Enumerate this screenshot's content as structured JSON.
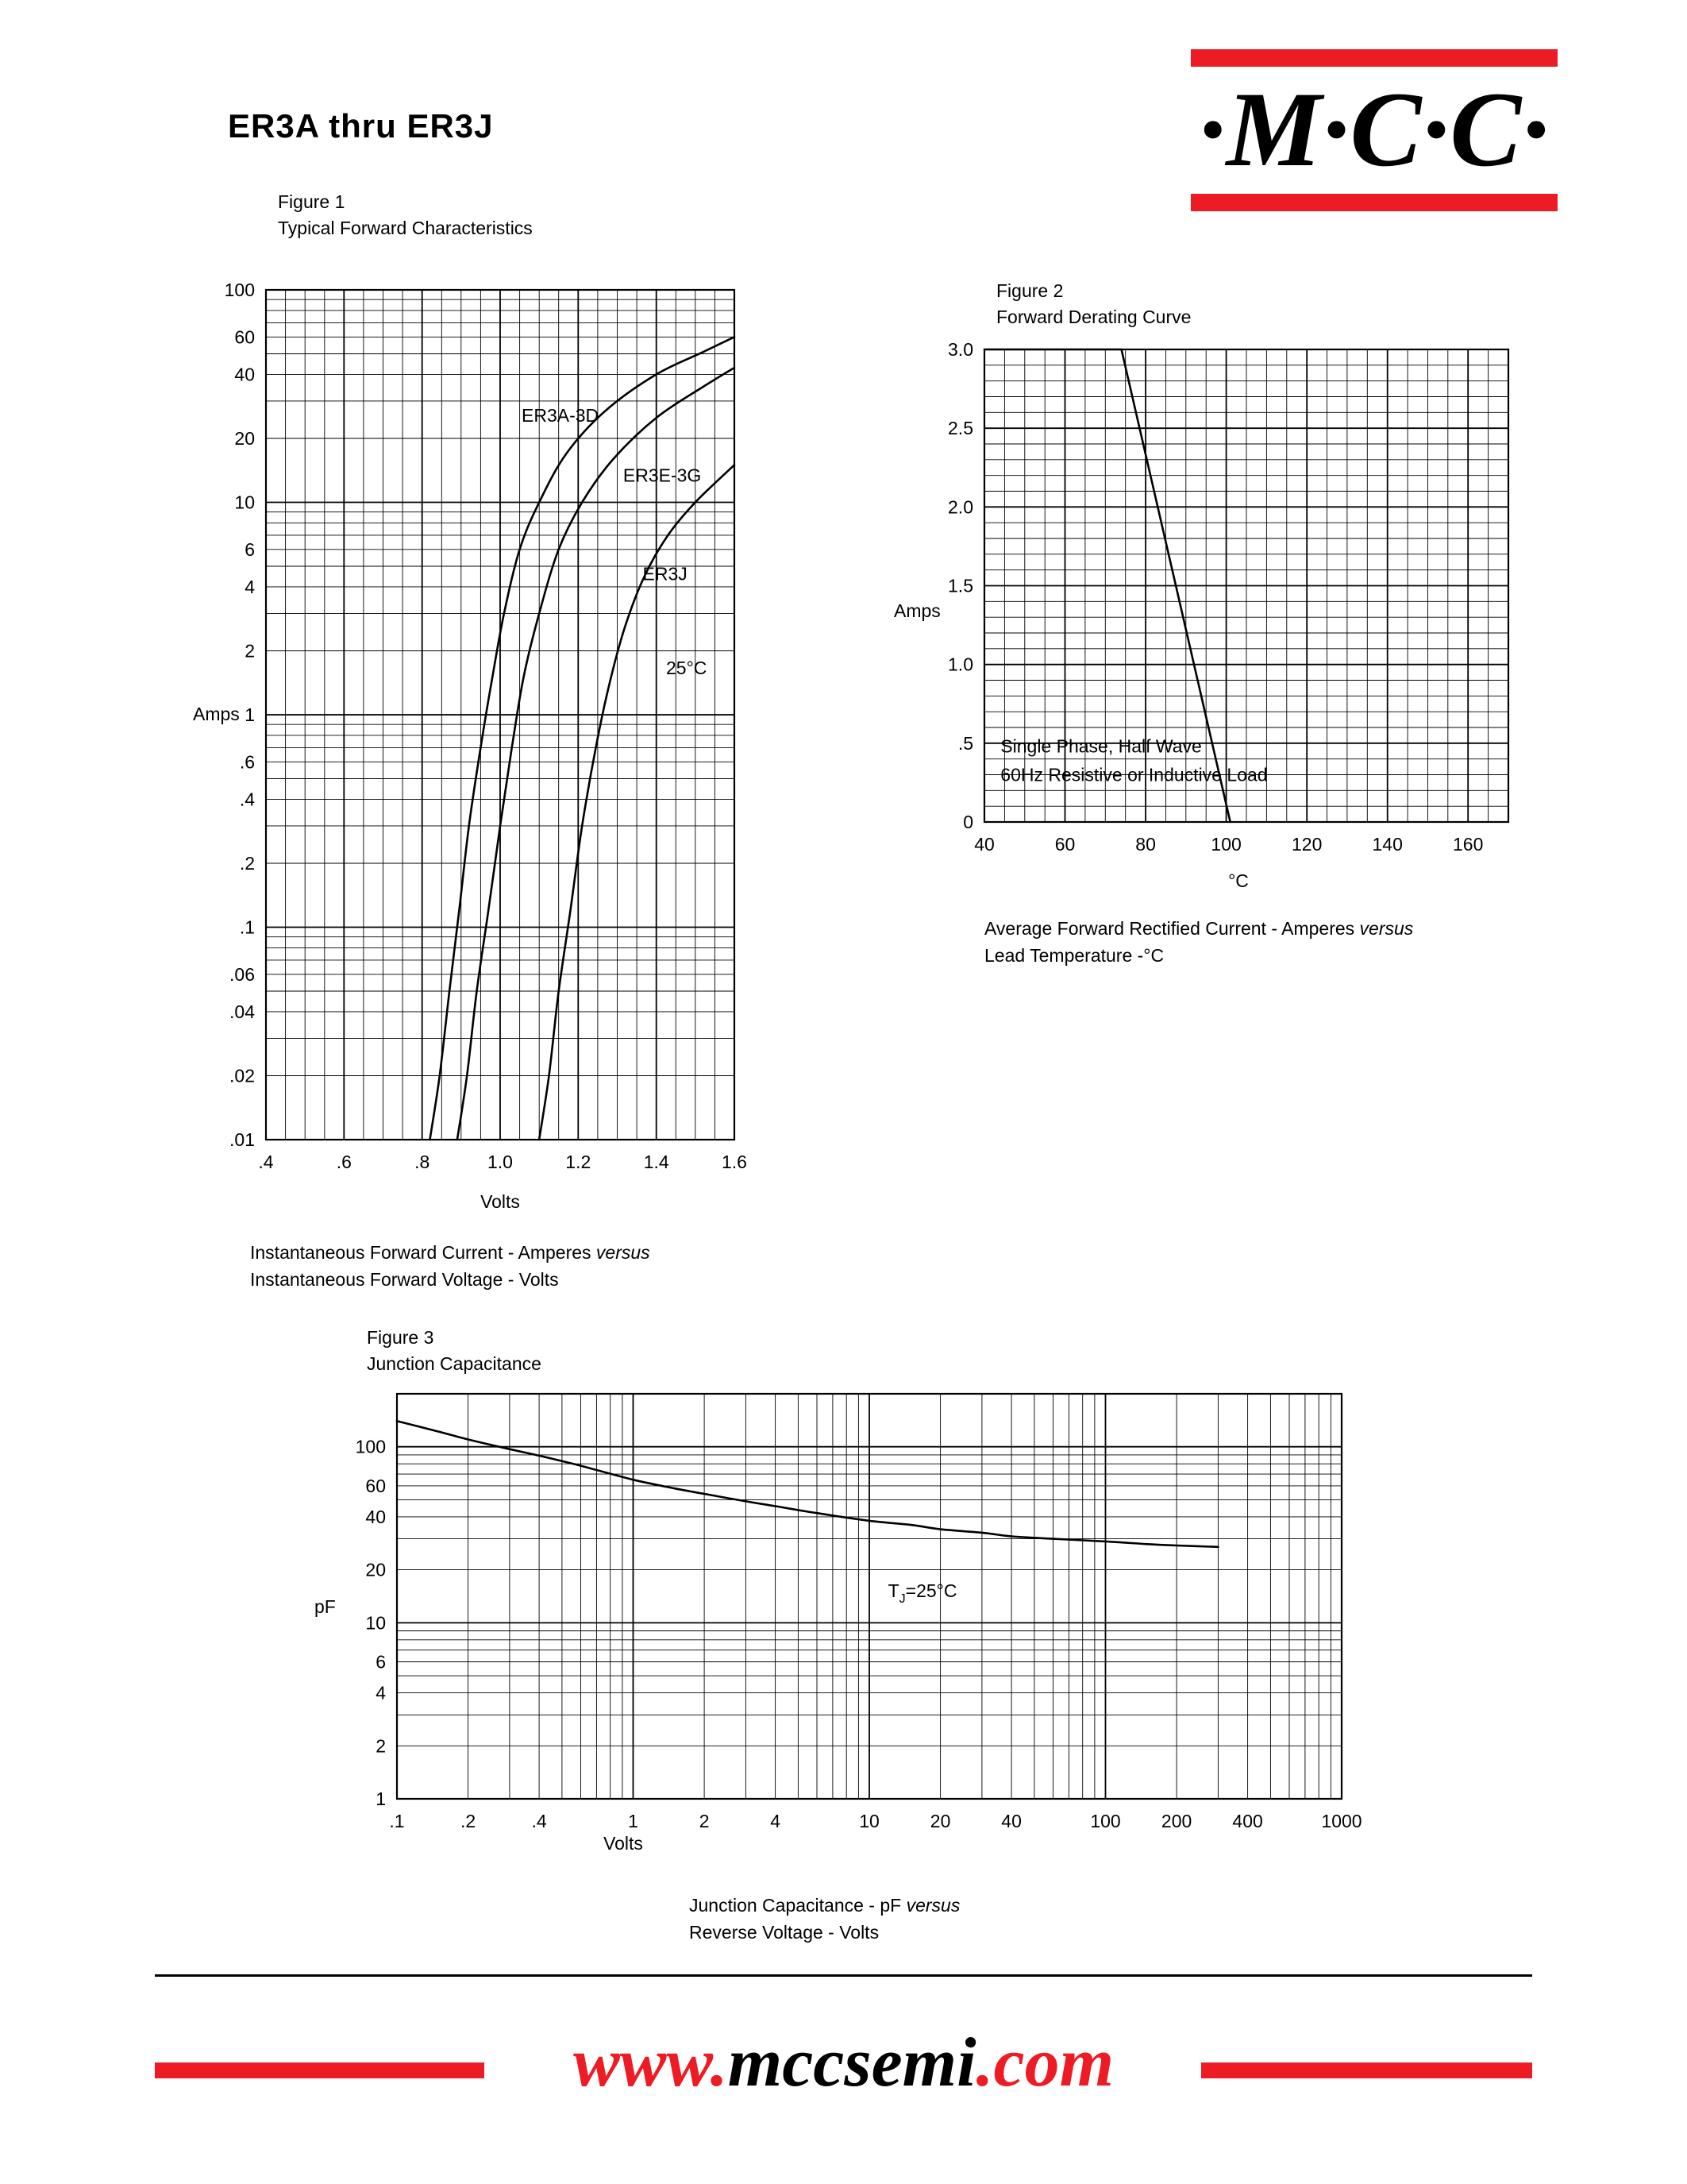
{
  "page": {
    "title": "ER3A thru ER3J",
    "logo_text": "·M·C·C·",
    "brand_red": "#ed1c24",
    "footer": {
      "www": "www.",
      "domain": "mccsemi",
      "com": ".com"
    }
  },
  "chart_data": [
    {
      "id": "fig1",
      "type": "line",
      "figure_label": "Figure 1",
      "figure_title": "Typical Forward Characteristics",
      "xlabel": "Volts",
      "ylabel": "Amps",
      "x_scale": "linear",
      "x_min": 0.4,
      "x_max": 1.6,
      "x_minor_step": 0.05,
      "y_scale": "log",
      "y_min": 0.01,
      "y_max": 100,
      "grid": true,
      "x_ticks": [
        {
          "v": 0.4,
          "l": ".4"
        },
        {
          "v": 0.6,
          "l": ".6"
        },
        {
          "v": 0.8,
          "l": ".8"
        },
        {
          "v": 1.0,
          "l": "1.0"
        },
        {
          "v": 1.2,
          "l": "1.2"
        },
        {
          "v": 1.4,
          "l": "1.4"
        },
        {
          "v": 1.6,
          "l": "1.6"
        }
      ],
      "y_ticks": [
        {
          "v": 100,
          "l": "100"
        },
        {
          "v": 60,
          "l": "60"
        },
        {
          "v": 40,
          "l": "40"
        },
        {
          "v": 20,
          "l": "20"
        },
        {
          "v": 10,
          "l": "10"
        },
        {
          "v": 6,
          "l": "6"
        },
        {
          "v": 4,
          "l": "4"
        },
        {
          "v": 2,
          "l": "2"
        },
        {
          "v": 1,
          "l": "1"
        },
        {
          "v": 0.6,
          "l": ".6"
        },
        {
          "v": 0.4,
          "l": ".4"
        },
        {
          "v": 0.2,
          "l": ".2"
        },
        {
          "v": 0.1,
          "l": ".1"
        },
        {
          "v": 0.06,
          "l": ".06"
        },
        {
          "v": 0.04,
          "l": ".04"
        },
        {
          "v": 0.02,
          "l": ".02"
        },
        {
          "v": 0.01,
          "l": ".01"
        }
      ],
      "series": [
        {
          "name": "ER3A-3D",
          "points": [
            [
              0.82,
              0.01
            ],
            [
              0.845,
              0.02
            ],
            [
              0.87,
              0.05
            ],
            [
              0.895,
              0.12
            ],
            [
              0.92,
              0.3
            ],
            [
              0.95,
              0.7
            ],
            [
              0.98,
              1.5
            ],
            [
              1.01,
              3
            ],
            [
              1.05,
              6
            ],
            [
              1.1,
              10
            ],
            [
              1.17,
              17
            ],
            [
              1.27,
              27
            ],
            [
              1.4,
              40
            ],
            [
              1.52,
              51
            ],
            [
              1.6,
              60
            ]
          ]
        },
        {
          "name": "ER3E-3G",
          "points": [
            [
              0.89,
              0.01
            ],
            [
              0.915,
              0.02
            ],
            [
              0.94,
              0.05
            ],
            [
              0.97,
              0.12
            ],
            [
              1.0,
              0.3
            ],
            [
              1.03,
              0.7
            ],
            [
              1.06,
              1.5
            ],
            [
              1.1,
              3
            ],
            [
              1.15,
              6
            ],
            [
              1.21,
              10
            ],
            [
              1.29,
              16
            ],
            [
              1.4,
              25
            ],
            [
              1.52,
              35
            ],
            [
              1.6,
              43
            ]
          ]
        },
        {
          "name": "ER3J",
          "points": [
            [
              1.1,
              0.01
            ],
            [
              1.125,
              0.02
            ],
            [
              1.15,
              0.05
            ],
            [
              1.18,
              0.12
            ],
            [
              1.21,
              0.3
            ],
            [
              1.245,
              0.7
            ],
            [
              1.28,
              1.4
            ],
            [
              1.32,
              2.6
            ],
            [
              1.37,
              4.5
            ],
            [
              1.43,
              7
            ],
            [
              1.5,
              10
            ],
            [
              1.6,
              15
            ]
          ]
        }
      ],
      "annotations": [
        {
          "x": 1.055,
          "y": 24,
          "text": "ER3A-3D"
        },
        {
          "x": 1.315,
          "y": 12.5,
          "text": "ER3E-3G"
        },
        {
          "x": 1.365,
          "y": 4.3,
          "text": "ER3J"
        },
        {
          "x": 1.425,
          "y": 1.55,
          "text": "25°C"
        }
      ],
      "caption": [
        [
          {
            "t": "Instantaneous Forward Current - Amperes "
          },
          {
            "t": "versus",
            "i": true
          }
        ],
        [
          {
            "t": "Instantaneous Forward Voltage - Volts"
          }
        ]
      ]
    },
    {
      "id": "fig2",
      "type": "line",
      "figure_label": "Figure 2",
      "figure_title": "Forward Derating Curve",
      "xlabel": "°C",
      "ylabel": "Amps",
      "x_scale": "linear",
      "x_min": 40,
      "x_max": 170,
      "x_minor_step": 5,
      "y_scale": "linear",
      "y_min": 0,
      "y_max": 3.0,
      "y_minor_step": 0.1,
      "grid": true,
      "x_ticks": [
        {
          "v": 40,
          "l": "40"
        },
        {
          "v": 60,
          "l": "60"
        },
        {
          "v": 80,
          "l": "80"
        },
        {
          "v": 100,
          "l": "100"
        },
        {
          "v": 120,
          "l": "120"
        },
        {
          "v": 140,
          "l": "140"
        },
        {
          "v": 160,
          "l": "160"
        }
      ],
      "y_ticks": [
        {
          "v": 3.0,
          "l": "3.0"
        },
        {
          "v": 2.5,
          "l": "2.5"
        },
        {
          "v": 2.0,
          "l": "2.0"
        },
        {
          "v": 1.5,
          "l": "1.5"
        },
        {
          "v": 1.0,
          "l": "1.0"
        },
        {
          "v": 0.5,
          "l": ".5"
        },
        {
          "v": 0,
          "l": "0"
        }
      ],
      "series": [
        {
          "name": "derating",
          "smooth": false,
          "points": [
            [
              40,
              3
            ],
            [
              74,
              3
            ],
            [
              101,
              0
            ]
          ]
        }
      ],
      "annotations": [
        {
          "x": 44,
          "y": 0.44,
          "text": "Single Phase, Half Wave"
        },
        {
          "x": 44,
          "y": 0.26,
          "text": "60Hz Resistive or Inductive Load"
        }
      ],
      "caption": [
        [
          {
            "t": "Average Forward Rectified Current  -  Amperes "
          },
          {
            "t": "versus",
            "i": true
          }
        ],
        [
          {
            "t": "Lead Temperature  -°C"
          }
        ]
      ]
    },
    {
      "id": "fig3",
      "type": "line",
      "figure_label": "Figure 3",
      "figure_title": "Junction Capacitance",
      "xlabel": "Volts",
      "ylabel": "pF",
      "x_scale": "log",
      "x_min": 0.1,
      "x_max": 1000,
      "y_scale": "log",
      "y_min": 1,
      "y_max": 200,
      "grid": true,
      "x_ticks": [
        {
          "v": 0.1,
          "l": ".1"
        },
        {
          "v": 0.2,
          "l": ".2"
        },
        {
          "v": 0.4,
          "l": ".4"
        },
        {
          "v": 1,
          "l": "1"
        },
        {
          "v": 2,
          "l": "2"
        },
        {
          "v": 4,
          "l": "4"
        },
        {
          "v": 10,
          "l": "10"
        },
        {
          "v": 20,
          "l": "20"
        },
        {
          "v": 40,
          "l": "40"
        },
        {
          "v": 100,
          "l": "100"
        },
        {
          "v": 200,
          "l": "200"
        },
        {
          "v": 400,
          "l": "400"
        },
        {
          "v": 1000,
          "l": "1000"
        }
      ],
      "y_ticks": [
        {
          "v": 100,
          "l": "100"
        },
        {
          "v": 60,
          "l": "60"
        },
        {
          "v": 40,
          "l": "40"
        },
        {
          "v": 20,
          "l": "20"
        },
        {
          "v": 10,
          "l": "10"
        },
        {
          "v": 6,
          "l": "6"
        },
        {
          "v": 4,
          "l": "4"
        },
        {
          "v": 2,
          "l": "2"
        },
        {
          "v": 1,
          "l": "1"
        }
      ],
      "series": [
        {
          "name": "junction-capacitance",
          "points": [
            [
              0.1,
              140
            ],
            [
              0.15,
              122
            ],
            [
              0.2,
              110
            ],
            [
              0.3,
              97
            ],
            [
              0.4,
              89
            ],
            [
              0.6,
              78
            ],
            [
              1,
              65
            ],
            [
              1.5,
              58
            ],
            [
              2,
              54
            ],
            [
              3,
              49
            ],
            [
              4,
              46
            ],
            [
              6,
              42
            ],
            [
              10,
              38
            ],
            [
              15,
              36
            ],
            [
              20,
              34
            ],
            [
              30,
              32.5
            ],
            [
              40,
              31
            ],
            [
              60,
              30
            ],
            [
              100,
              29
            ],
            [
              150,
              28
            ],
            [
              200,
              27.5
            ],
            [
              300,
              27
            ]
          ]
        }
      ],
      "annotations": [
        {
          "x": 12,
          "y": 14,
          "parts": [
            {
              "t": "T"
            },
            {
              "t": "J",
              "sub": true
            },
            {
              "t": "=25°C"
            }
          ]
        }
      ],
      "caption": [
        [
          {
            "t": "Junction Capacitance - pF "
          },
          {
            "t": "versus",
            "i": true
          }
        ],
        [
          {
            "t": "Reverse Voltage - Volts"
          }
        ]
      ]
    }
  ]
}
